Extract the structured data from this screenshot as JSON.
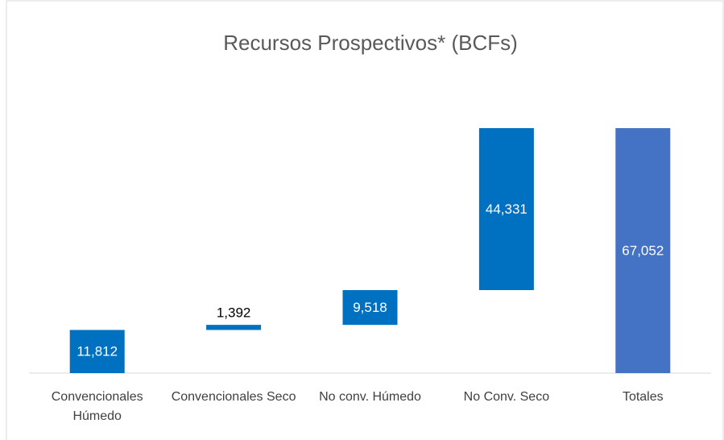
{
  "chart_data": {
    "type": "waterfall",
    "title": "Recursos Prospectivos* (BCFs)",
    "categories": [
      "Convencionales Húmedo",
      "Convencionales Seco",
      "No conv. Húmedo",
      "No Conv. Seco",
      "Totales"
    ],
    "values": [
      11812,
      1392,
      9518,
      44331,
      67052
    ],
    "value_labels": [
      "11,812",
      "1,392",
      "9,518",
      "44,331",
      "67,052"
    ],
    "is_total": [
      false,
      false,
      false,
      false,
      true
    ],
    "color": "#0070c0",
    "total_color": "#4472c4"
  }
}
